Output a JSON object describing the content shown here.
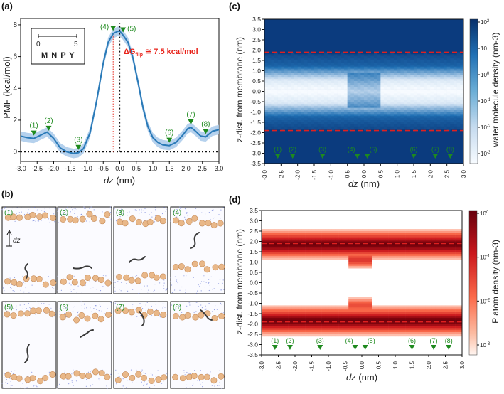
{
  "panels": {
    "a": "(a)",
    "b": "(b)",
    "c": "(c)",
    "d": "(d)"
  },
  "legend_box": {
    "scale_min": "0",
    "scale_max": "5",
    "letters": "M N P Y"
  },
  "annotation": {
    "text_prefix": "ΔG",
    "text_sub": "flip",
    "text_suffix": " ≅ 7.5 kcal/mol",
    "color": "#e8231a"
  },
  "dz_label": "dz",
  "state_labels": [
    "(1)",
    "(2)",
    "(3)",
    "(4)",
    "(5)",
    "(6)",
    "(7)",
    "(8)"
  ],
  "state_positions": [
    -2.6,
    -2.15,
    -1.25,
    -0.2,
    0.1,
    1.5,
    2.15,
    2.6
  ],
  "snapshot_labels": [
    "(1)",
    "(2)",
    "(3)",
    "(4)",
    "(5)",
    "(6)",
    "(7)",
    "(8)"
  ],
  "colors": {
    "pmf_line": "#2a7ab8",
    "pmf_band": "#a8c9ea",
    "marker": "#1e8a1e",
    "dash_red": "#e02020",
    "water_dark": "#0c2f6b",
    "p_dark": "#7a0009"
  },
  "chart_data": [
    {
      "id": "a",
      "type": "line",
      "title": "",
      "xlabel": "dz (nm)",
      "ylabel": "PMF (kcal/mol)",
      "xlim": [
        -3.0,
        3.0
      ],
      "ylim": [
        -0.6,
        8.4
      ],
      "xticks": [
        "-3.0",
        "-2.5",
        "-2.0",
        "-1.5",
        "-1.0",
        "-0.5",
        "0.0",
        "0.5",
        "1.0",
        "1.5",
        "2.0",
        "2.5",
        "3.0"
      ],
      "yticks": [
        "0",
        "2",
        "4",
        "6",
        "8"
      ],
      "series": [
        {
          "name": "PMF",
          "x": [
            -3.0,
            -2.8,
            -2.6,
            -2.4,
            -2.2,
            -2.0,
            -1.8,
            -1.6,
            -1.4,
            -1.25,
            -1.1,
            -0.9,
            -0.7,
            -0.5,
            -0.35,
            -0.2,
            -0.05,
            0.0,
            0.1,
            0.25,
            0.4,
            0.55,
            0.7,
            0.85,
            1.0,
            1.15,
            1.3,
            1.5,
            1.7,
            1.9,
            2.05,
            2.15,
            2.3,
            2.45,
            2.6,
            2.8,
            3.0
          ],
          "y": [
            1.0,
            0.9,
            0.85,
            1.05,
            1.25,
            0.85,
            0.25,
            0.0,
            -0.1,
            -0.05,
            0.2,
            1.2,
            3.2,
            5.6,
            6.9,
            7.45,
            7.6,
            7.6,
            7.35,
            6.9,
            5.9,
            4.4,
            2.8,
            1.6,
            0.9,
            0.6,
            0.45,
            0.4,
            0.6,
            1.05,
            1.45,
            1.55,
            1.3,
            1.0,
            0.95,
            1.3,
            1.4
          ],
          "band": 0.3
        }
      ],
      "annotations": [
        "ΔGflip ≅ 7.5 kcal/mol"
      ]
    },
    {
      "id": "c",
      "type": "heatmap",
      "xlabel": "dz (nm)",
      "ylabel": "z-dist. from membrane (nm)",
      "colorbar_label": "water molecule density (nm-3)",
      "xlim": [
        -3.0,
        3.0
      ],
      "ylim": [
        -3.5,
        3.5
      ],
      "xticks": [
        "-3.0",
        "-2.5",
        "-2.0",
        "-1.5",
        "-1.0",
        "-0.5",
        "0.0",
        "0.5",
        "1.0",
        "1.5",
        "2.0",
        "2.5",
        "3.0"
      ],
      "yticks": [
        "3.5",
        "3.0",
        "2.5",
        "2.0",
        "1.5",
        "1.0",
        "0.5",
        "0.0",
        "-0.5",
        "-1.0",
        "-1.5",
        "-2.0",
        "-2.5",
        "-3.0",
        "-3.5"
      ],
      "cbar_ticks": [
        "10^2",
        "10^1",
        "10^0",
        "10^-1",
        "10^-2",
        "10^-3"
      ],
      "reference_lines": [
        1.9,
        -1.9
      ]
    },
    {
      "id": "d",
      "type": "heatmap",
      "xlabel": "dz (nm)",
      "ylabel": "z-dist. from membrane (nm)",
      "colorbar_label": "P atom density (nm-3)",
      "xlim": [
        -3.0,
        3.0
      ],
      "ylim": [
        -3.5,
        3.5
      ],
      "xticks": [
        "-3.0",
        "-2.5",
        "-2.0",
        "-1.5",
        "-1.0",
        "-0.5",
        "0.0",
        "0.5",
        "1.0",
        "1.5",
        "2.0",
        "2.5",
        "3.0"
      ],
      "yticks": [
        "3.5",
        "3.0",
        "2.5",
        "2.0",
        "1.5",
        "1.0",
        "0.5",
        "0.0",
        "-0.5",
        "-1.0",
        "-1.5",
        "-2.0",
        "-2.5",
        "-3.0",
        "-3.5"
      ],
      "cbar_ticks": [
        "10^0",
        "10^-1",
        "10^-2",
        "10^-3"
      ],
      "reference_lines": [
        1.9,
        -1.9
      ]
    }
  ]
}
